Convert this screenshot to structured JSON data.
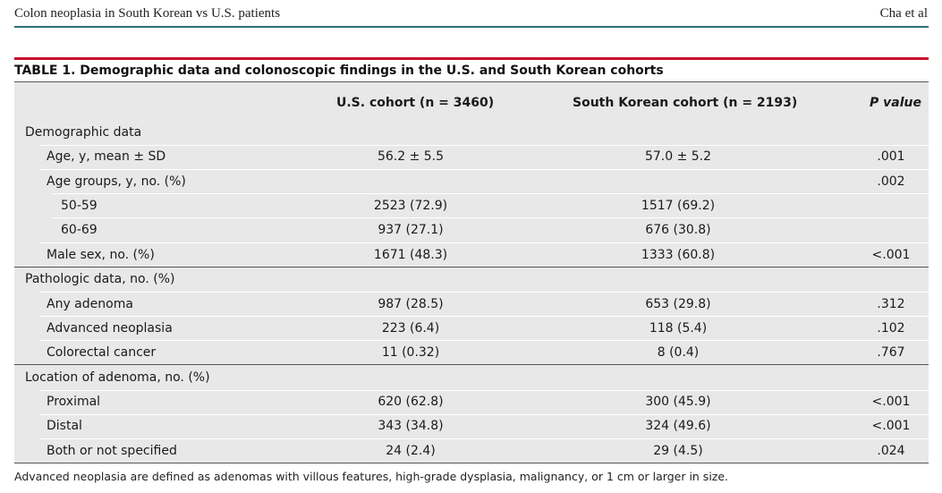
{
  "running_head": {
    "left": "Colon neoplasia in South Korean vs U.S. patients",
    "right": "Cha et al"
  },
  "table": {
    "title": "TABLE 1. Demographic data and colonoscopic findings in the U.S. and South Korean cohorts",
    "headers": {
      "us": "U.S. cohort (n = 3460)",
      "kr": "South Korean cohort (n = 2193)",
      "p": "P value"
    },
    "rows": [
      {
        "label": "Demographic data",
        "us": "",
        "kr": "",
        "p": ""
      },
      {
        "label": "Age, y, mean ± SD",
        "us": "56.2 ± 5.5",
        "kr": "57.0 ± 5.2",
        "p": ".001"
      },
      {
        "label": "Age groups, y, no. (%)",
        "us": "",
        "kr": "",
        "p": ".002"
      },
      {
        "label": "50-59",
        "us": "2523 (72.9)",
        "kr": "1517 (69.2)",
        "p": ""
      },
      {
        "label": "60-69",
        "us": "937 (27.1)",
        "kr": "676 (30.8)",
        "p": ""
      },
      {
        "label": "Male sex, no. (%)",
        "us": "1671 (48.3)",
        "kr": "1333 (60.8)",
        "p": "<.001"
      },
      {
        "label": "Pathologic data, no. (%)",
        "us": "",
        "kr": "",
        "p": ""
      },
      {
        "label": "Any adenoma",
        "us": "987 (28.5)",
        "kr": "653 (29.8)",
        "p": ".312"
      },
      {
        "label": "Advanced neoplasia",
        "us": "223 (6.4)",
        "kr": "118 (5.4)",
        "p": ".102"
      },
      {
        "label": "Colorectal cancer",
        "us": "11 (0.32)",
        "kr": "8 (0.4)",
        "p": ".767"
      },
      {
        "label": "Location of adenoma, no. (%)",
        "us": "",
        "kr": "",
        "p": ""
      },
      {
        "label": "Proximal",
        "us": "620 (62.8)",
        "kr": "300 (45.9)",
        "p": "<.001"
      },
      {
        "label": "Distal",
        "us": "343 (34.8)",
        "kr": "324 (49.6)",
        "p": "<.001"
      },
      {
        "label": "Both or not specified",
        "us": "24 (2.4)",
        "kr": "29 (4.5)",
        "p": ".024"
      }
    ],
    "footnote": "Advanced neoplasia are defined as adenomas with villous features, high-grade dysplasia, malignancy, or 1 cm or larger in size."
  }
}
